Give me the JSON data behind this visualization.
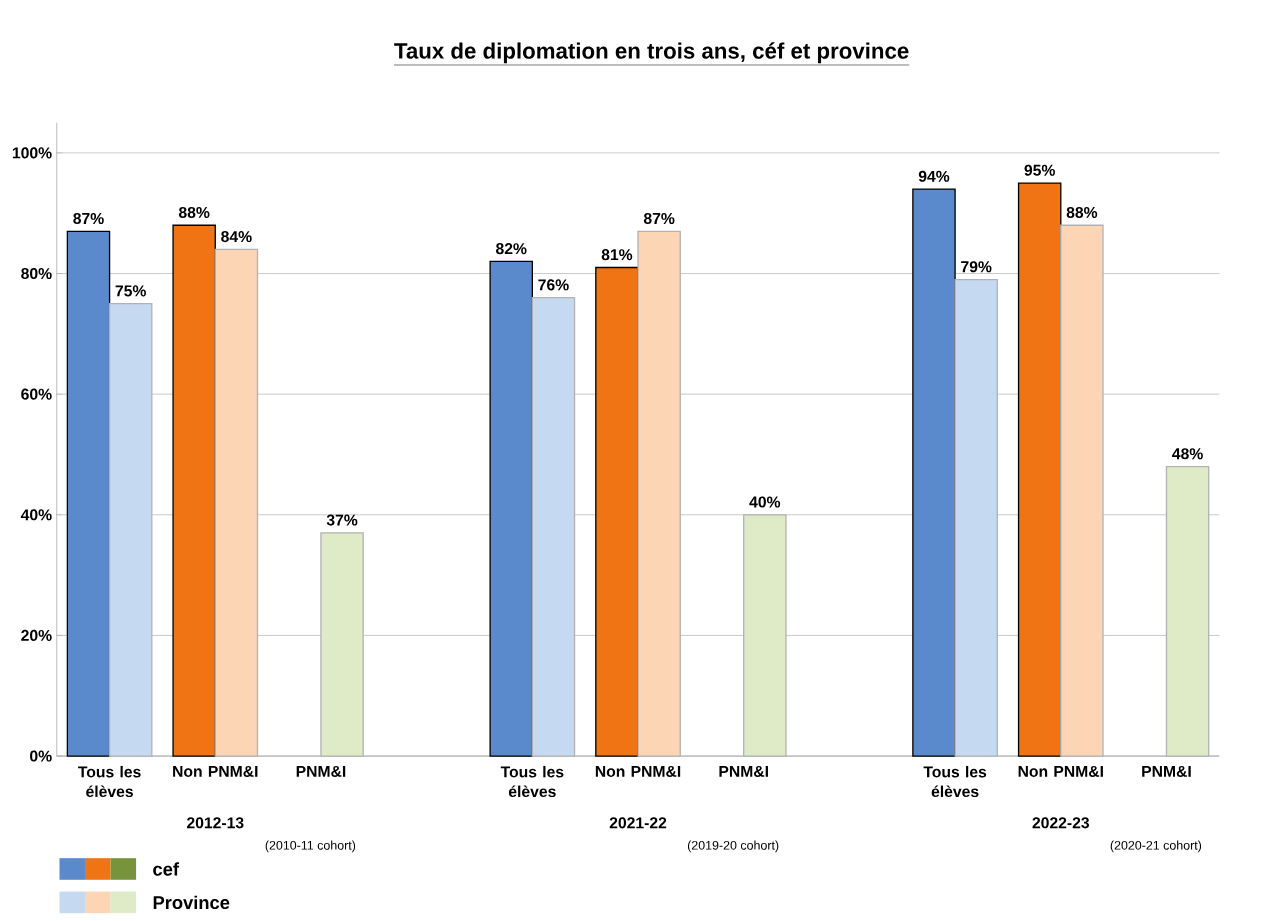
{
  "chart_data": {
    "type": "bar",
    "title": "Taux de diplomation en trois ans, céf et province",
    "categories": [
      "Tous les élèves",
      "Non PNM&I",
      "PNM&I",
      null,
      "Tous les élèves",
      "Non PNM&I",
      "PNM&I",
      null,
      "Tous les élèves",
      "Non PNM&I",
      "PNM&I"
    ],
    "series": [
      {
        "name": "cef",
        "colors": [
          "#5a8acb",
          "#f07414",
          "#77933c",
          null,
          "#5a8acb",
          "#f07414",
          "#77933c",
          null,
          "#5a8acb",
          "#f07414",
          "#77933c"
        ],
        "values": [
          87,
          88,
          null,
          null,
          82,
          81,
          null,
          null,
          94,
          95,
          null
        ],
        "value_labels": [
          "87%",
          "88%",
          null,
          null,
          "82%",
          "81%",
          null,
          null,
          "94%",
          "95%",
          null
        ]
      },
      {
        "name": "Province",
        "colors": [
          "#c5d9f1",
          "#fcd5b5",
          "#dfeac6",
          null,
          "#c5d9f1",
          "#fcd5b5",
          "#dfeac6",
          null,
          "#c5d9f1",
          "#fcd5b5",
          "#dfeac6"
        ],
        "values": [
          75,
          84,
          37,
          null,
          76,
          87,
          40,
          null,
          79,
          88,
          48
        ],
        "value_labels": [
          "75%",
          "84%",
          "37%",
          null,
          "76%",
          "87%",
          "40%",
          null,
          "79%",
          "88%",
          "48%"
        ]
      }
    ],
    "ylim": [
      0,
      105
    ],
    "yticks": [
      {
        "value": 0,
        "label": "0%"
      },
      {
        "value": 20,
        "label": "20%"
      },
      {
        "value": 40,
        "label": "40%"
      },
      {
        "value": 60,
        "label": "60%"
      },
      {
        "value": 80,
        "label": "80%"
      },
      {
        "value": 100,
        "label": "100%"
      }
    ],
    "grid": "y",
    "legend": "bottom left",
    "annotations": [
      "2012-13",
      "(2010-11 cohort)",
      "2021-22",
      "(2019-20 cohort)",
      "2022-23",
      "(2020-21 cohort)"
    ]
  }
}
